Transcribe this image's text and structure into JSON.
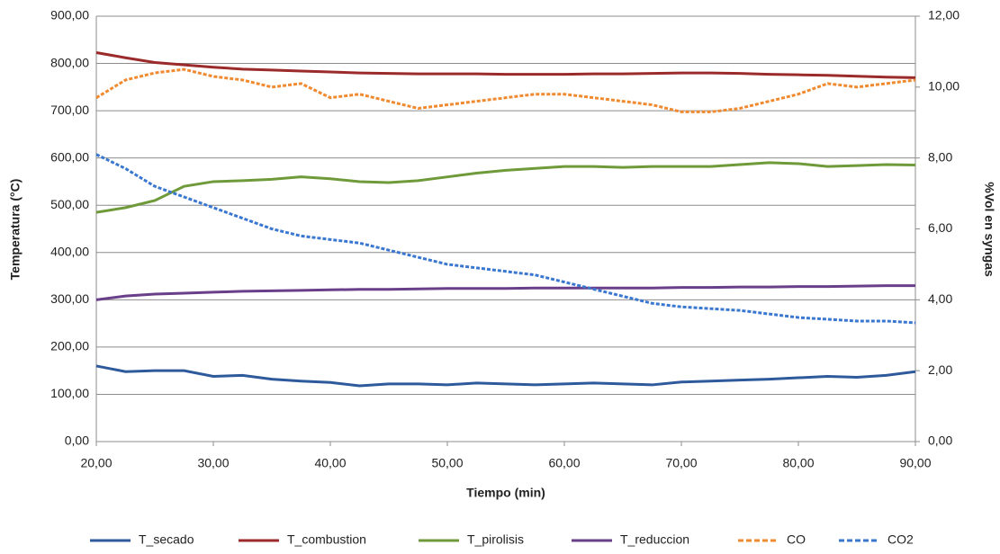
{
  "chart_data": {
    "type": "line",
    "x_label": "Tiempo (min)",
    "y_label": "Temperatura (°C)",
    "y2_label": "%Vol en syngas",
    "x": [
      20,
      22.5,
      25,
      27.5,
      30,
      32.5,
      35,
      37.5,
      40,
      42.5,
      45,
      47.5,
      50,
      52.5,
      55,
      57.5,
      60,
      62.5,
      65,
      67.5,
      70,
      72.5,
      75,
      77.5,
      80,
      82.5,
      85,
      87.5,
      90
    ],
    "xlim": [
      20,
      90
    ],
    "xticks": [
      {
        "value": 20,
        "label": "20,00"
      },
      {
        "value": 30,
        "label": "30,00"
      },
      {
        "value": 40,
        "label": "40,00"
      },
      {
        "value": 50,
        "label": "50,00"
      },
      {
        "value": 60,
        "label": "60,00"
      },
      {
        "value": 70,
        "label": "70,00"
      },
      {
        "value": 80,
        "label": "80,00"
      },
      {
        "value": 90,
        "label": "90,00"
      }
    ],
    "ylim": [
      0,
      900
    ],
    "yticks": [
      {
        "value": 0,
        "label": "0,00"
      },
      {
        "value": 100,
        "label": "100,00"
      },
      {
        "value": 200,
        "label": "200,00"
      },
      {
        "value": 300,
        "label": "300,00"
      },
      {
        "value": 400,
        "label": "400,00"
      },
      {
        "value": 500,
        "label": "500,00"
      },
      {
        "value": 600,
        "label": "600,00"
      },
      {
        "value": 700,
        "label": "700,00"
      },
      {
        "value": 800,
        "label": "800,00"
      },
      {
        "value": 900,
        "label": "900,00"
      }
    ],
    "y2lim": [
      0,
      12
    ],
    "y2ticks": [
      {
        "value": 0,
        "label": "0,00"
      },
      {
        "value": 2,
        "label": "2,00"
      },
      {
        "value": 4,
        "label": "4,00"
      },
      {
        "value": 6,
        "label": "6,00"
      },
      {
        "value": 8,
        "label": "8,00"
      },
      {
        "value": 10,
        "label": "10,00"
      },
      {
        "value": 12,
        "label": "12,00"
      }
    ],
    "grid": true,
    "legend": "bottom",
    "series": [
      {
        "name": "T_secado",
        "color": "#2e5a9c",
        "dashed": false,
        "values": [
          160,
          148,
          150,
          150,
          138,
          140,
          132,
          128,
          125,
          118,
          122,
          122,
          120,
          124,
          122,
          120,
          122,
          124,
          122,
          120,
          126,
          128,
          130,
          132,
          135,
          138,
          136,
          140,
          148
        ]
      },
      {
        "name": "T_combustion",
        "color": "#9b2a2a",
        "dashed": false,
        "values": [
          823,
          812,
          802,
          797,
          792,
          788,
          786,
          784,
          782,
          780,
          779,
          778,
          778,
          778,
          777,
          777,
          777,
          778,
          778,
          779,
          780,
          780,
          779,
          777,
          776,
          775,
          773,
          771,
          770
        ]
      },
      {
        "name": "T_pirolisis",
        "color": "#6f9a3a",
        "dashed": false,
        "values": [
          485,
          495,
          510,
          540,
          550,
          552,
          555,
          560,
          556,
          550,
          548,
          552,
          560,
          568,
          574,
          578,
          582,
          582,
          580,
          582,
          582,
          582,
          586,
          590,
          588,
          582,
          584,
          586,
          585
        ]
      },
      {
        "name": "T_reduccion",
        "color": "#6a3f8a",
        "dashed": false,
        "values": [
          300,
          308,
          312,
          314,
          316,
          318,
          319,
          320,
          321,
          322,
          322,
          323,
          324,
          324,
          324,
          325,
          325,
          325,
          325,
          325,
          326,
          326,
          327,
          327,
          328,
          328,
          329,
          330,
          330
        ]
      },
      {
        "name": "CO",
        "color": "#f08a30",
        "dashed": true,
        "axis": "y2",
        "values": [
          9.7,
          10.2,
          10.4,
          10.5,
          10.3,
          10.2,
          10.0,
          10.1,
          9.7,
          9.8,
          9.6,
          9.4,
          9.5,
          9.6,
          9.7,
          9.8,
          9.8,
          9.7,
          9.6,
          9.5,
          9.3,
          9.3,
          9.4,
          9.6,
          9.8,
          10.1,
          10.0,
          10.1,
          10.2
        ]
      },
      {
        "name": "CO2",
        "color": "#3a78d0",
        "dashed": true,
        "axis": "y2",
        "values": [
          8.1,
          7.7,
          7.2,
          6.9,
          6.6,
          6.3,
          6.0,
          5.8,
          5.7,
          5.6,
          5.4,
          5.2,
          5.0,
          4.9,
          4.8,
          4.7,
          4.5,
          4.3,
          4.1,
          3.9,
          3.8,
          3.75,
          3.7,
          3.6,
          3.5,
          3.45,
          3.4,
          3.4,
          3.35
        ]
      }
    ]
  }
}
